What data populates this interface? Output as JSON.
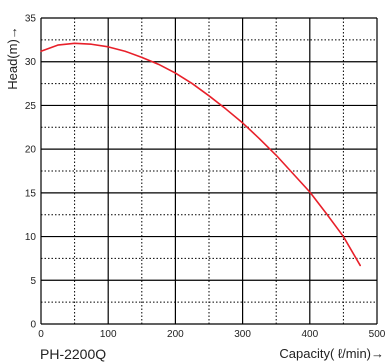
{
  "chart_data": {
    "type": "line",
    "title": "",
    "model_label": "PH-2200Q",
    "xlabel": "Capacity( ℓ/min)→",
    "ylabel": "Head(m)→",
    "xlim": [
      0,
      500
    ],
    "ylim": [
      0,
      35
    ],
    "x_ticks": [
      "0",
      "100",
      "200",
      "300",
      "400",
      "500"
    ],
    "y_ticks": [
      "0",
      "5",
      "10",
      "15",
      "20",
      "25",
      "30",
      "35"
    ],
    "grid": true,
    "series": [
      {
        "color": "#e8202a",
        "x": [
          0,
          25,
          50,
          75,
          100,
          125,
          150,
          175,
          200,
          225,
          250,
          275,
          300,
          325,
          350,
          375,
          400,
          425,
          450,
          475
        ],
        "y": [
          31.2,
          31.9,
          32.1,
          32.0,
          31.7,
          31.2,
          30.5,
          29.7,
          28.7,
          27.5,
          26.1,
          24.6,
          23.0,
          21.2,
          19.3,
          17.2,
          15.1,
          12.6,
          10.0,
          6.7
        ]
      }
    ]
  }
}
